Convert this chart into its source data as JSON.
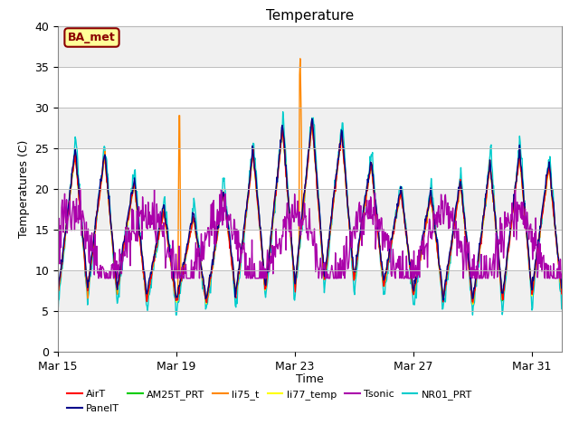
{
  "title": "Temperature",
  "ylabel": "Temperatures (C)",
  "xlabel": "Time",
  "ylim": [
    0,
    40
  ],
  "xtick_labels": [
    "Mar 15",
    "Mar 19",
    "Mar 23",
    "Mar 27",
    "Mar 31"
  ],
  "xtick_positions": [
    0,
    4,
    8,
    12,
    16
  ],
  "total_days": 17,
  "annotation_text": "BA_met",
  "annotation_color": "#8B0000",
  "annotation_bg": "#FFFF99",
  "annotation_border": "#8B0000",
  "series_order": [
    "NR01_PRT",
    "AM25T_PRT",
    "li77_temp",
    "li75_t",
    "AirT",
    "PanelT",
    "Tsonic"
  ],
  "series": [
    {
      "name": "AirT",
      "color": "#FF0000",
      "lw": 1.0
    },
    {
      "name": "PanelT",
      "color": "#00008B",
      "lw": 1.0
    },
    {
      "name": "AM25T_PRT",
      "color": "#00CC00",
      "lw": 1.0
    },
    {
      "name": "li75_t",
      "color": "#FF8800",
      "lw": 1.0
    },
    {
      "name": "li77_temp",
      "color": "#FFFF00",
      "lw": 1.0
    },
    {
      "name": "Tsonic",
      "color": "#AA00AA",
      "lw": 1.0
    },
    {
      "name": "NR01_PRT",
      "color": "#00CCCC",
      "lw": 1.0
    }
  ]
}
